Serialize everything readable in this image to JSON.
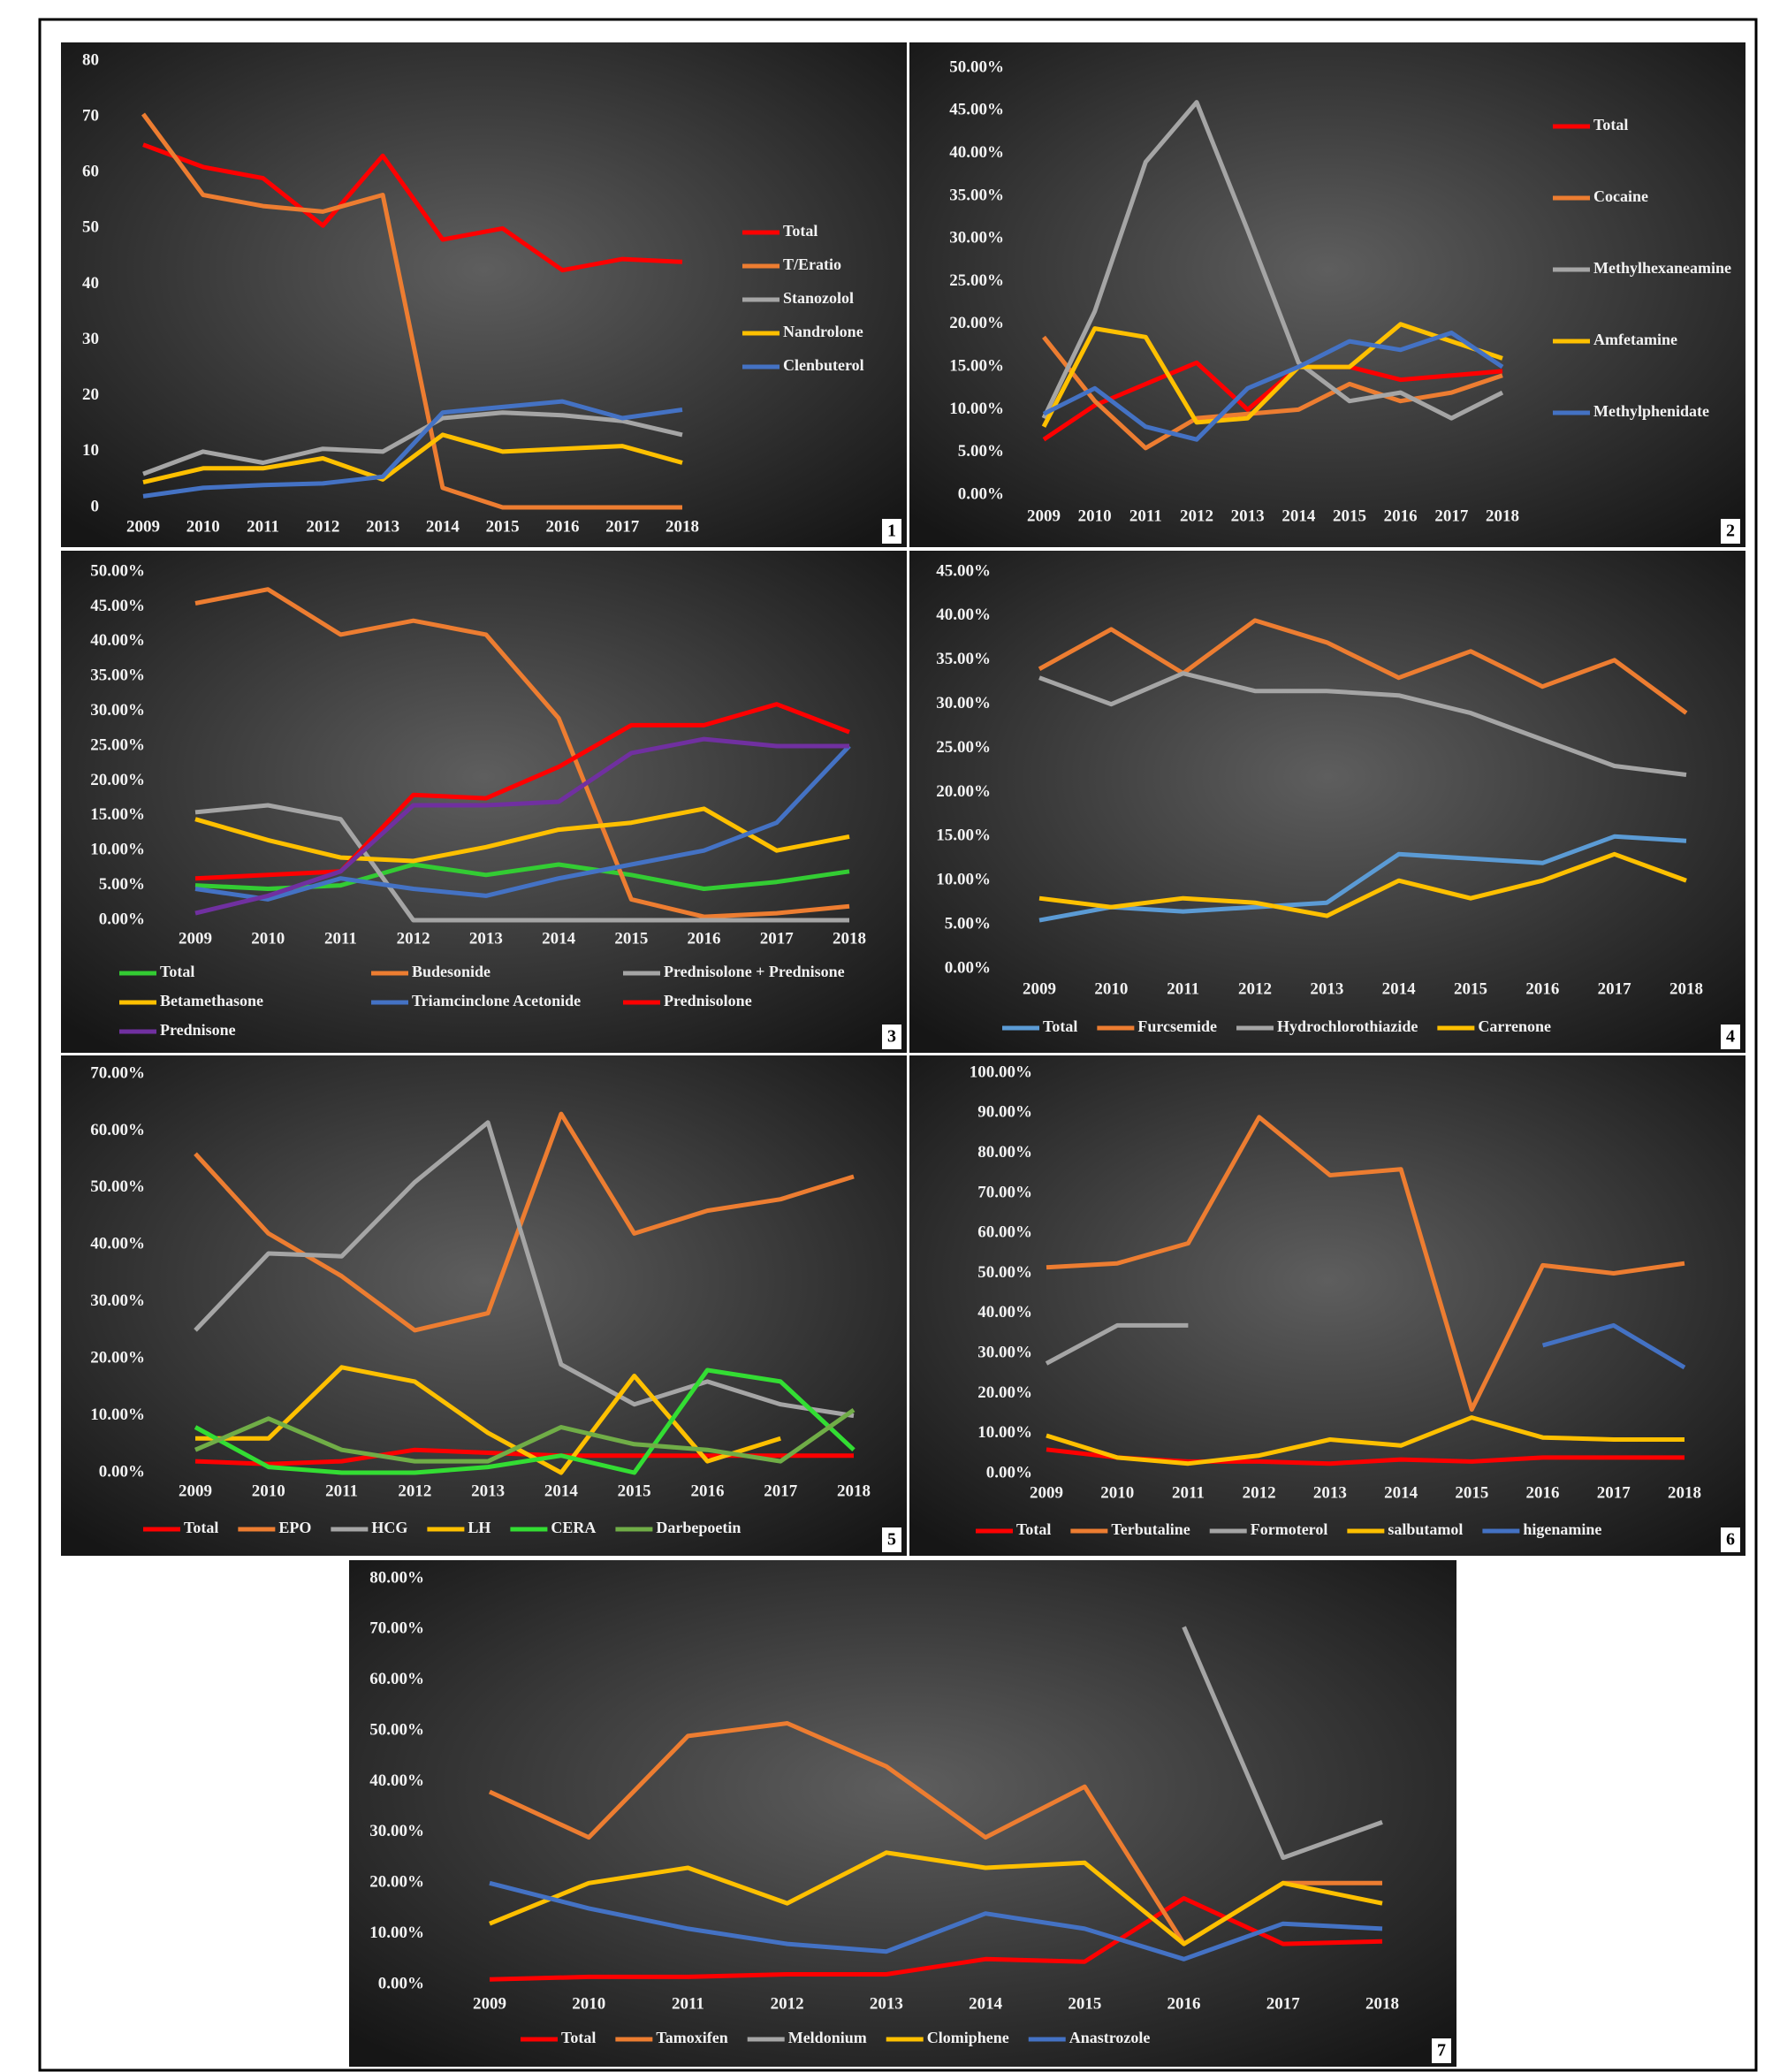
{
  "chart_data": [
    {
      "type": "line",
      "panel": "1",
      "legend": "right",
      "categories": [
        "2009",
        "2010",
        "2011",
        "2012",
        "2013",
        "2014",
        "2015",
        "2016",
        "2017",
        "2018"
      ],
      "ylim": [
        0,
        80
      ],
      "yticks": [
        0,
        10,
        20,
        30,
        40,
        50,
        60,
        70,
        80
      ],
      "series": [
        {
          "name": "Total",
          "color": "#ff0000",
          "values": [
            65,
            61,
            59,
            50.5,
            63,
            48,
            50,
            42.5,
            44.5,
            44
          ]
        },
        {
          "name": "T/Eratio",
          "color": "#ed7d31",
          "values": [
            70.5,
            56,
            54,
            53,
            56,
            3.5,
            0,
            0,
            0,
            0
          ]
        },
        {
          "name": "Stanozolol",
          "color": "#a5a5a5",
          "values": [
            6,
            10,
            8,
            10.5,
            10,
            16,
            17,
            16.5,
            15.5,
            13
          ]
        },
        {
          "name": "Nandrolone",
          "color": "#ffc000",
          "values": [
            4.5,
            7,
            7,
            8.8,
            5,
            13,
            10,
            10.5,
            11,
            8
          ]
        },
        {
          "name": "Clenbuterol",
          "color": "#4472c4",
          "values": [
            2,
            3.5,
            4,
            4.3,
            5.5,
            17,
            18,
            19,
            16,
            17.5
          ]
        }
      ]
    },
    {
      "type": "line",
      "panel": "2",
      "legend": "right",
      "categories": [
        "2009",
        "2010",
        "2011",
        "2012",
        "2013",
        "2014",
        "2015",
        "2016",
        "2017",
        "2018"
      ],
      "ylim": [
        0,
        50
      ],
      "yticks": [
        {
          "value": 0,
          "label": "0.00%"
        },
        {
          "value": 5,
          "label": "5.00%"
        },
        {
          "value": 10,
          "label": "10.00%"
        },
        {
          "value": 15,
          "label": "15.00%"
        },
        {
          "value": 20,
          "label": "20.00%"
        },
        {
          "value": 25,
          "label": "25.00%"
        },
        {
          "value": 30,
          "label": "30.00%"
        },
        {
          "value": 35,
          "label": "35.00%"
        },
        {
          "value": 40,
          "label": "40.00%"
        },
        {
          "value": 45,
          "label": "45.00%"
        },
        {
          "value": 50,
          "label": "50.00%"
        }
      ],
      "series": [
        {
          "name": "Total",
          "color": "#ff0000",
          "values": [
            6.5,
            10.5,
            13,
            15.5,
            10,
            15,
            15,
            13.5,
            14,
            14.5
          ]
        },
        {
          "name": "Cocaine",
          "color": "#ed7d31",
          "values": [
            18.5,
            11,
            5.5,
            9,
            9.5,
            10,
            13,
            11,
            12,
            14
          ]
        },
        {
          "name": "Methylhexaneamine",
          "color": "#a5a5a5",
          "values": [
            9,
            21.5,
            39,
            46,
            31,
            15.5,
            11,
            12,
            9,
            12
          ]
        },
        {
          "name": "Amfetamine",
          "color": "#ffc000",
          "values": [
            8,
            19.5,
            18.5,
            8.5,
            9,
            15,
            15,
            20,
            18,
            16
          ]
        },
        {
          "name": "Methylphenidate",
          "color": "#4472c4",
          "values": [
            9.5,
            12.5,
            8,
            6.5,
            12.5,
            15,
            18,
            17,
            19,
            15
          ]
        }
      ]
    },
    {
      "type": "line",
      "panel": "3",
      "legend": "bottom",
      "categories": [
        "2009",
        "2010",
        "2011",
        "2012",
        "2013",
        "2014",
        "2015",
        "2016",
        "2017",
        "2018"
      ],
      "ylim": [
        0,
        50
      ],
      "yticks": [
        {
          "value": 0,
          "label": "0.00%"
        },
        {
          "value": 5,
          "label": "5.00%"
        },
        {
          "value": 10,
          "label": "10.00%"
        },
        {
          "value": 15,
          "label": "15.00%"
        },
        {
          "value": 20,
          "label": "20.00%"
        },
        {
          "value": 25,
          "label": "25.00%"
        },
        {
          "value": 30,
          "label": "30.00%"
        },
        {
          "value": 35,
          "label": "35.00%"
        },
        {
          "value": 40,
          "label": "40.00%"
        },
        {
          "value": 45,
          "label": "45.00%"
        },
        {
          "value": 50,
          "label": "50.00%"
        }
      ],
      "series": [
        {
          "name": "Total",
          "color": "#33cc33",
          "values": [
            5,
            4.5,
            5,
            8,
            6.5,
            8,
            6.5,
            4.5,
            5.5,
            7
          ]
        },
        {
          "name": "Budesonide",
          "color": "#ed7d31",
          "values": [
            45.5,
            47.5,
            41,
            43,
            41,
            29,
            3,
            0.5,
            1,
            2
          ]
        },
        {
          "name": "Prednisolone + Prednisone",
          "color": "#a5a5a5",
          "values": [
            15.5,
            16.5,
            14.5,
            0,
            0,
            0,
            0,
            0,
            0,
            0
          ]
        },
        {
          "name": "Betamethasone",
          "color": "#ffc000",
          "values": [
            14.5,
            11.5,
            9,
            8.5,
            10.5,
            13,
            14,
            16,
            10,
            12
          ]
        },
        {
          "name": "Triamcinclone Acetonide",
          "color": "#4472c4",
          "values": [
            4.5,
            3,
            6,
            4.5,
            3.5,
            6,
            8,
            10,
            14,
            25
          ]
        },
        {
          "name": "Prednisolone",
          "color": "#ff0000",
          "values": [
            6,
            6.5,
            7,
            18,
            17.5,
            22,
            28,
            28,
            31,
            27
          ]
        },
        {
          "name": "Prednisone",
          "color": "#7030a0",
          "values": [
            1,
            3.5,
            7,
            16.5,
            16.5,
            17,
            24,
            26,
            25,
            25
          ]
        }
      ]
    },
    {
      "type": "line",
      "panel": "4",
      "legend": "bottom",
      "categories": [
        "2009",
        "2010",
        "2011",
        "2012",
        "2013",
        "2014",
        "2015",
        "2016",
        "2017",
        "2018"
      ],
      "ylim": [
        0,
        45
      ],
      "yticks": [
        {
          "value": 0,
          "label": "0.00%"
        },
        {
          "value": 5,
          "label": "5.00%"
        },
        {
          "value": 10,
          "label": "10.00%"
        },
        {
          "value": 15,
          "label": "15.00%"
        },
        {
          "value": 20,
          "label": "20.00%"
        },
        {
          "value": 25,
          "label": "25.00%"
        },
        {
          "value": 30,
          "label": "30.00%"
        },
        {
          "value": 35,
          "label": "35.00%"
        },
        {
          "value": 40,
          "label": "40.00%"
        },
        {
          "value": 45,
          "label": "45.00%"
        }
      ],
      "series": [
        {
          "name": "Total",
          "color": "#5b9bd5",
          "values": [
            5.5,
            7,
            6.5,
            7,
            7.5,
            13,
            12.5,
            12,
            15,
            14.5
          ]
        },
        {
          "name": "Furcsemide",
          "color": "#ed7d31",
          "values": [
            34,
            38.5,
            33.5,
            39.5,
            37,
            33,
            36,
            32,
            35,
            29
          ]
        },
        {
          "name": "Hydrochlorothiazide",
          "color": "#a5a5a5",
          "values": [
            33,
            30,
            33.5,
            31.5,
            31.5,
            31,
            29,
            26,
            23,
            22
          ]
        },
        {
          "name": "Carrenone",
          "color": "#ffc000",
          "values": [
            8,
            7,
            8,
            7.5,
            6,
            10,
            8,
            10,
            13,
            10
          ]
        }
      ]
    },
    {
      "type": "line",
      "panel": "5",
      "legend": "bottom",
      "categories": [
        "2009",
        "2010",
        "2011",
        "2012",
        "2013",
        "2014",
        "2015",
        "2016",
        "2017",
        "2018"
      ],
      "ylim": [
        0,
        70
      ],
      "yticks": [
        {
          "value": 0,
          "label": "0.00%"
        },
        {
          "value": 10,
          "label": "10.00%"
        },
        {
          "value": 20,
          "label": "20.00%"
        },
        {
          "value": 30,
          "label": "30.00%"
        },
        {
          "value": 40,
          "label": "40.00%"
        },
        {
          "value": 50,
          "label": "50.00%"
        },
        {
          "value": 60,
          "label": "60.00%"
        },
        {
          "value": 70,
          "label": "70.00%"
        }
      ],
      "series": [
        {
          "name": "Total",
          "color": "#ff0000",
          "values": [
            2,
            1.5,
            2,
            4,
            3.5,
            3,
            3,
            3,
            3,
            3
          ]
        },
        {
          "name": "EPO",
          "color": "#ed7d31",
          "values": [
            56,
            42,
            34.5,
            25,
            28,
            63,
            42,
            46,
            48,
            52
          ]
        },
        {
          "name": "HCG",
          "color": "#a5a5a5",
          "values": [
            25,
            38.5,
            38,
            51,
            61.5,
            19,
            12,
            16,
            12,
            10
          ]
        },
        {
          "name": "LH",
          "color": "#ffc000",
          "values": [
            6,
            6,
            18.5,
            16,
            7,
            0,
            17,
            2,
            6,
            null
          ]
        },
        {
          "name": "CERA",
          "color": "#33dd33",
          "values": [
            8,
            1,
            0,
            0,
            1,
            3,
            0,
            18,
            16,
            4
          ]
        },
        {
          "name": "Darbepoetin",
          "color": "#70ad47",
          "values": [
            4,
            9.5,
            4,
            2,
            2,
            8,
            5,
            4,
            2,
            11
          ]
        }
      ]
    },
    {
      "type": "line",
      "panel": "6",
      "legend": "bottom",
      "categories": [
        "2009",
        "2010",
        "2011",
        "2012",
        "2013",
        "2014",
        "2015",
        "2016",
        "2017",
        "2018"
      ],
      "ylim": [
        0,
        100
      ],
      "yticks": [
        {
          "value": 0,
          "label": "0.00%"
        },
        {
          "value": 10,
          "label": "10.00%"
        },
        {
          "value": 20,
          "label": "20.00%"
        },
        {
          "value": 30,
          "label": "30.00%"
        },
        {
          "value": 40,
          "label": "40.00%"
        },
        {
          "value": 50,
          "label": "50.00%"
        },
        {
          "value": 60,
          "label": "60.00%"
        },
        {
          "value": 70,
          "label": "70.00%"
        },
        {
          "value": 80,
          "label": "80.00%"
        },
        {
          "value": 90,
          "label": "90.00%"
        },
        {
          "value": 100,
          "label": "100.00%"
        }
      ],
      "series": [
        {
          "name": "Total",
          "color": "#ff0000",
          "values": [
            6,
            4,
            3,
            3,
            2.5,
            3.5,
            3,
            4,
            4,
            4
          ]
        },
        {
          "name": "Terbutaline",
          "color": "#ed7d31",
          "values": [
            51.5,
            52.5,
            57.5,
            89,
            74.5,
            76,
            16,
            52,
            50,
            52.5
          ]
        },
        {
          "name": "Formoterol",
          "color": "#a5a5a5",
          "values": [
            27.5,
            37,
            37,
            null,
            null,
            null,
            null,
            null,
            null,
            null
          ]
        },
        {
          "name": "salbutamol",
          "color": "#ffc000",
          "values": [
            9.5,
            4,
            2.5,
            4.5,
            8.5,
            7,
            14,
            9,
            8.5,
            8.5
          ]
        },
        {
          "name": "higenamine",
          "color": "#4472c4",
          "values": [
            null,
            null,
            null,
            null,
            null,
            null,
            null,
            32,
            37,
            26.5
          ]
        }
      ]
    },
    {
      "type": "line",
      "panel": "7",
      "legend": "bottom",
      "categories": [
        "2009",
        "2010",
        "2011",
        "2012",
        "2013",
        "2014",
        "2015",
        "2016",
        "2017",
        "2018"
      ],
      "ylim": [
        0,
        80
      ],
      "yticks": [
        {
          "value": 0,
          "label": "0.00%"
        },
        {
          "value": 10,
          "label": "10.00%"
        },
        {
          "value": 20,
          "label": "20.00%"
        },
        {
          "value": 30,
          "label": "30.00%"
        },
        {
          "value": 40,
          "label": "40.00%"
        },
        {
          "value": 50,
          "label": "50.00%"
        },
        {
          "value": 60,
          "label": "60.00%"
        },
        {
          "value": 70,
          "label": "70.00%"
        },
        {
          "value": 80,
          "label": "80.00%"
        }
      ],
      "series": [
        {
          "name": "Total",
          "color": "#ff0000",
          "values": [
            1,
            1.5,
            1.5,
            2,
            2,
            5,
            4.5,
            17,
            8,
            8.5
          ]
        },
        {
          "name": "Tamoxifen",
          "color": "#ed7d31",
          "values": [
            38,
            29,
            49,
            51.5,
            43,
            29,
            39,
            8,
            20,
            20
          ]
        },
        {
          "name": "Meldonium",
          "color": "#a5a5a5",
          "values": [
            null,
            null,
            null,
            null,
            null,
            null,
            null,
            70.5,
            25,
            32
          ]
        },
        {
          "name": "Clomiphene",
          "color": "#ffc000",
          "values": [
            12,
            20,
            23,
            16,
            26,
            23,
            24,
            8,
            20,
            16
          ]
        },
        {
          "name": "Anastrozole",
          "color": "#4472c4",
          "values": [
            20,
            15,
            11,
            8,
            6.5,
            14,
            11,
            5,
            12,
            11
          ]
        }
      ]
    }
  ]
}
